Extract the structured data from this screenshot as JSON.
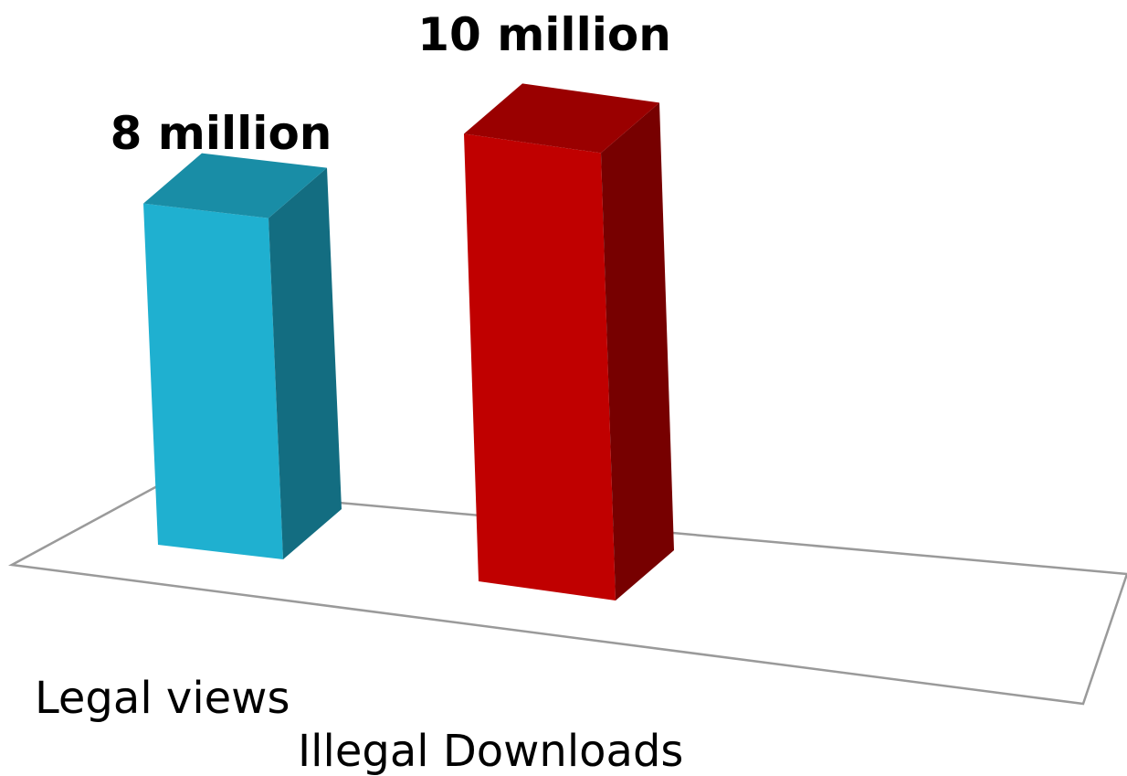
{
  "chart_data": {
    "type": "bar",
    "categories": [
      "Legal views",
      "Illegal Downloads"
    ],
    "values": [
      8,
      10
    ],
    "unit": "million",
    "data_labels": [
      "8 million",
      "10 million"
    ],
    "colors": [
      "#1fb0d0",
      "#c00000"
    ],
    "grid": false,
    "legend": "none",
    "three_d": true
  }
}
